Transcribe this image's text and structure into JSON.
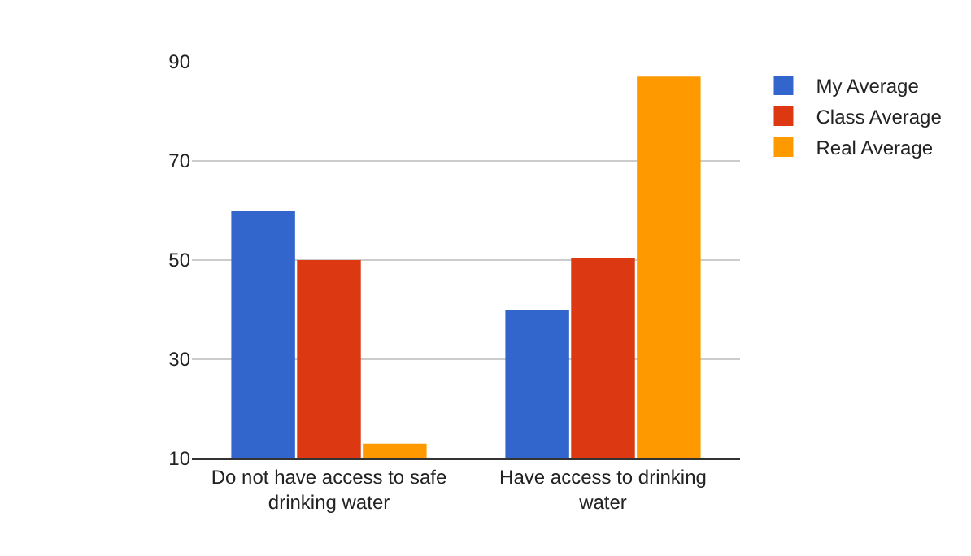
{
  "chart_data": {
    "type": "bar",
    "categories": [
      "Do not have access to safe drinking water",
      "Have access to drinking water"
    ],
    "series": [
      {
        "name": "My Average",
        "color": "#3366cc",
        "values": [
          60,
          40
        ]
      },
      {
        "name": "Class Average",
        "color": "#dc3912",
        "values": [
          50,
          50.5
        ]
      },
      {
        "name": "Real Average",
        "color": "#ff9900",
        "values": [
          13,
          87
        ]
      }
    ],
    "ylim": [
      10,
      90
    ],
    "yticks": [
      10,
      30,
      50,
      70,
      90
    ],
    "grid": "y",
    "legend": "right"
  }
}
